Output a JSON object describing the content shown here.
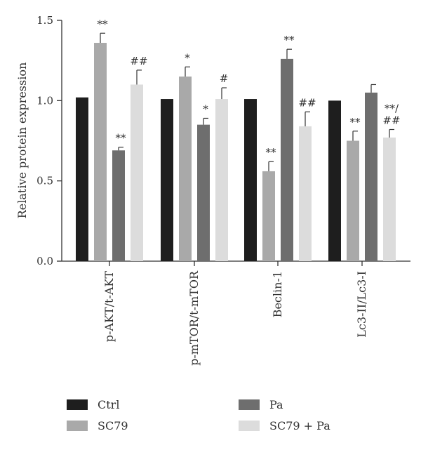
{
  "chart_data": {
    "type": "bar",
    "ylabel": "Relative protein expression",
    "ylim": [
      0,
      1.5
    ],
    "yticks": [
      "0.0",
      "0.5",
      "1.0",
      "1.5"
    ],
    "categories": [
      "p-AKT/t-AKT",
      "p-mTOR/t-mTOR",
      "Beclin-1",
      "Lc3-II/Lc3-I"
    ],
    "series": [
      {
        "name": "Ctrl",
        "color": "#1e1e1e",
        "values": [
          1.02,
          1.01,
          1.01,
          1.0
        ],
        "errors": [
          0,
          0,
          0,
          0
        ],
        "annotations": [
          "",
          "",
          "",
          ""
        ]
      },
      {
        "name": "SC79",
        "color": "#a9a9a9",
        "values": [
          1.36,
          1.15,
          0.56,
          0.75
        ],
        "errors": [
          0.06,
          0.06,
          0.06,
          0.06
        ],
        "annotations": [
          "**",
          "*",
          "**",
          "**"
        ]
      },
      {
        "name": "Pa",
        "color": "#6e6e6e",
        "values": [
          0.69,
          0.85,
          1.26,
          1.05
        ],
        "errors": [
          0.02,
          0.04,
          0.06,
          0.05
        ],
        "annotations": [
          "**",
          "*",
          "**",
          ""
        ]
      },
      {
        "name": "SC79 + Pa",
        "color": "#dcdcdc",
        "values": [
          1.1,
          1.01,
          0.84,
          0.77
        ],
        "errors": [
          0.09,
          0.07,
          0.09,
          0.05
        ],
        "annotations": [
          "##",
          "#",
          "##",
          "**/\n##"
        ]
      }
    ],
    "legend": {
      "position": "bottom",
      "columns": 2
    },
    "grid": false
  }
}
